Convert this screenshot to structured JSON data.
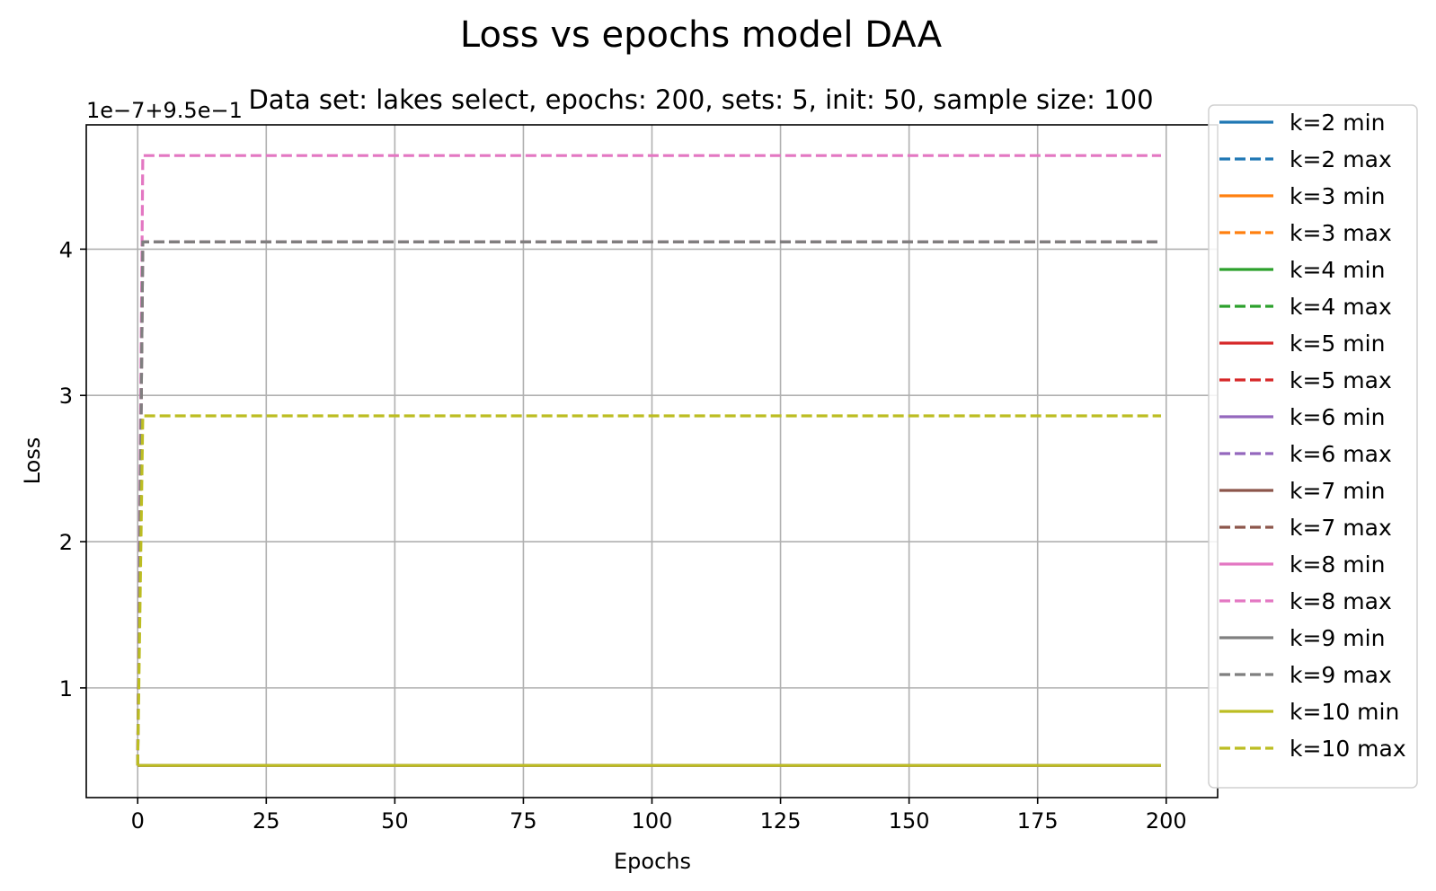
{
  "suptitle": "Loss vs epochs model DAA",
  "chart_data": {
    "type": "line",
    "title": "Data set:  lakes select, epochs: 200, sets: 5, init: 50, sample size: 100",
    "xlabel": "Epochs",
    "ylabel": "Loss",
    "offset_text": "1e−7+9.5e−1",
    "xlim": [
      -10,
      210
    ],
    "ylim": [
      0.25,
      4.85
    ],
    "x_ticks": [
      0,
      25,
      50,
      75,
      100,
      125,
      150,
      175,
      200
    ],
    "y_ticks": [
      1,
      2,
      3,
      4
    ],
    "grid": true,
    "legend_position": "right",
    "x_range": [
      0,
      199
    ],
    "series": [
      {
        "name": "k=2 min",
        "color": "#1f77b4",
        "dash": "solid",
        "start": 0.47,
        "plateau": 0.47
      },
      {
        "name": "k=2 max",
        "color": "#1f77b4",
        "dash": "dashed",
        "start": 0.47,
        "plateau": 0.47
      },
      {
        "name": "k=3 min",
        "color": "#ff7f0e",
        "dash": "solid",
        "start": 0.47,
        "plateau": 0.47
      },
      {
        "name": "k=3 max",
        "color": "#ff7f0e",
        "dash": "dashed",
        "start": 0.47,
        "plateau": 0.47
      },
      {
        "name": "k=4 min",
        "color": "#2ca02c",
        "dash": "solid",
        "start": 0.47,
        "plateau": 0.47
      },
      {
        "name": "k=4 max",
        "color": "#2ca02c",
        "dash": "dashed",
        "start": 0.47,
        "plateau": 0.47
      },
      {
        "name": "k=5 min",
        "color": "#d62728",
        "dash": "solid",
        "start": 0.47,
        "plateau": 0.47
      },
      {
        "name": "k=5 max",
        "color": "#d62728",
        "dash": "dashed",
        "start": 0.47,
        "plateau": 0.47
      },
      {
        "name": "k=6 min",
        "color": "#9467bd",
        "dash": "solid",
        "start": 0.47,
        "plateau": 0.47
      },
      {
        "name": "k=6 max",
        "color": "#9467bd",
        "dash": "dashed",
        "start": 0.47,
        "plateau": 4.05
      },
      {
        "name": "k=7 min",
        "color": "#8c564b",
        "dash": "solid",
        "start": 0.47,
        "plateau": 0.47
      },
      {
        "name": "k=7 max",
        "color": "#8c564b",
        "dash": "dashed",
        "start": 0.47,
        "plateau": 4.05
      },
      {
        "name": "k=8 min",
        "color": "#e377c2",
        "dash": "solid",
        "start": 0.47,
        "plateau": 0.47
      },
      {
        "name": "k=8 max",
        "color": "#e377c2",
        "dash": "dashed",
        "start": 0.47,
        "plateau": 4.64
      },
      {
        "name": "k=9 min",
        "color": "#7f7f7f",
        "dash": "solid",
        "start": 0.47,
        "plateau": 0.47
      },
      {
        "name": "k=9 max",
        "color": "#7f7f7f",
        "dash": "dashed",
        "start": 0.47,
        "plateau": 4.05
      },
      {
        "name": "k=10 min",
        "color": "#bcbd22",
        "dash": "solid",
        "start": 0.47,
        "plateau": 0.47
      },
      {
        "name": "k=10 max",
        "color": "#bcbd22",
        "dash": "dashed",
        "start": 0.47,
        "plateau": 2.86
      }
    ]
  }
}
